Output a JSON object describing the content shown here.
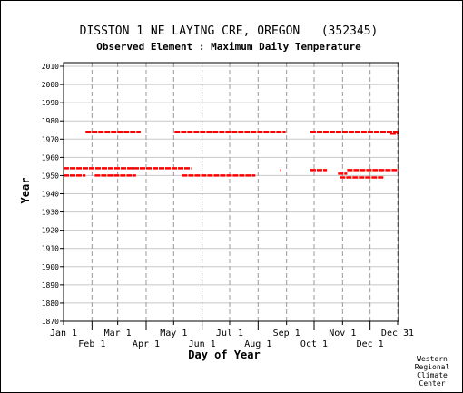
{
  "chart_data": {
    "type": "scatter",
    "title": "DISSTON 1 NE LAYING CRE, OREGON   (352345)",
    "subtitle": "Observed Element : Maximum Daily Temperature",
    "xlabel": "Day of Year",
    "ylabel": "Year",
    "ylim": [
      1870,
      2012
    ],
    "yticks": [
      1870,
      1880,
      1890,
      1900,
      1910,
      1920,
      1930,
      1940,
      1950,
      1960,
      1970,
      1980,
      1990,
      2000,
      2010
    ],
    "xlim": [
      1,
      366
    ],
    "xticks": [
      {
        "label": "Jan 1",
        "day": 1,
        "row": 1
      },
      {
        "label": "Feb 1",
        "day": 32,
        "row": 2
      },
      {
        "label": "Mar 1",
        "day": 60,
        "row": 1
      },
      {
        "label": "Apr 1",
        "day": 91,
        "row": 2
      },
      {
        "label": "May 1",
        "day": 121,
        "row": 1
      },
      {
        "label": "Jun 1",
        "day": 152,
        "row": 2
      },
      {
        "label": "Jul 1",
        "day": 182,
        "row": 1
      },
      {
        "label": "Aug 1",
        "day": 213,
        "row": 2
      },
      {
        "label": "Sep 1",
        "day": 244,
        "row": 1
      },
      {
        "label": "Oct 1",
        "day": 274,
        "row": 2
      },
      {
        "label": "Nov 1",
        "day": 305,
        "row": 1
      },
      {
        "label": "Dec 1",
        "day": 335,
        "row": 2
      },
      {
        "label": "Dec 31",
        "day": 365,
        "row": 1
      }
    ],
    "grid": true,
    "series_color": "#ff0000",
    "segments": [
      {
        "year": 1974,
        "start": 25,
        "end": 85
      },
      {
        "year": 1974,
        "start": 122,
        "end": 243
      },
      {
        "year": 1974,
        "start": 270,
        "end": 366
      },
      {
        "year": 1973,
        "start": 357,
        "end": 366
      },
      {
        "year": 1954,
        "start": 1,
        "end": 140
      },
      {
        "year": 1953,
        "start": 237,
        "end": 238
      },
      {
        "year": 1953,
        "start": 270,
        "end": 288
      },
      {
        "year": 1953,
        "start": 310,
        "end": 366
      },
      {
        "year": 1951,
        "start": 300,
        "end": 310
      },
      {
        "year": 1950,
        "start": 1,
        "end": 25
      },
      {
        "year": 1950,
        "start": 35,
        "end": 80
      },
      {
        "year": 1950,
        "start": 130,
        "end": 210
      },
      {
        "year": 1949,
        "start": 302,
        "end": 350
      }
    ]
  },
  "credit": [
    "Western",
    "Regional",
    "Climate",
    "Center"
  ]
}
